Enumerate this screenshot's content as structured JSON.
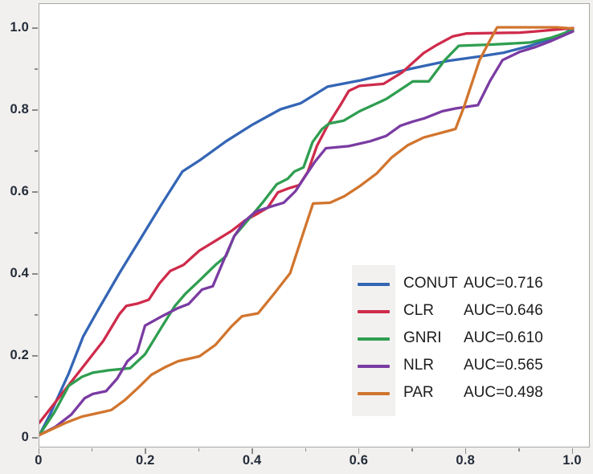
{
  "figure": {
    "background": "#f1f0ee",
    "plot_background": "#ffffff",
    "border_color": "#a8a8a8",
    "tick_color": "#8a8a8a",
    "tick_label_color": "#242c3a"
  },
  "chart_data": {
    "type": "line",
    "title": "",
    "xlabel": "",
    "ylabel": "",
    "xlim": [
      0,
      1
    ],
    "ylim": [
      0,
      1
    ],
    "grid": false,
    "legend_position": "lower right",
    "x_ticks": {
      "major": [
        0,
        0.2,
        0.4,
        0.6,
        0.8,
        1.0
      ],
      "labels": [
        "0",
        "0.2",
        "0.4",
        "0.6",
        "0.8",
        "1.0"
      ],
      "minor": [
        0.1,
        0.3,
        0.5,
        0.7,
        0.9
      ]
    },
    "y_ticks": {
      "major": [
        0,
        0.2,
        0.4,
        0.6,
        0.8,
        1.0
      ],
      "labels": [
        "0",
        "0.2",
        "0.4",
        "0.6",
        "0.8",
        "1.0"
      ],
      "minor": [
        0.1,
        0.3,
        0.5,
        0.7,
        0.9
      ]
    },
    "series": [
      {
        "name": "CONUT",
        "auc": 0.716,
        "auc_label": "AUC=0.716",
        "color": "#3465b5",
        "points": [
          [
            0,
            0.005
          ],
          [
            0.02,
            0.055
          ],
          [
            0.055,
            0.155
          ],
          [
            0.082,
            0.245
          ],
          [
            0.11,
            0.31
          ],
          [
            0.15,
            0.4
          ],
          [
            0.19,
            0.485
          ],
          [
            0.23,
            0.57
          ],
          [
            0.268,
            0.648
          ],
          [
            0.3,
            0.675
          ],
          [
            0.35,
            0.722
          ],
          [
            0.4,
            0.763
          ],
          [
            0.452,
            0.8
          ],
          [
            0.49,
            0.815
          ],
          [
            0.54,
            0.855
          ],
          [
            0.6,
            0.87
          ],
          [
            0.65,
            0.885
          ],
          [
            0.7,
            0.9
          ],
          [
            0.766,
            0.918
          ],
          [
            0.82,
            0.928
          ],
          [
            0.87,
            0.938
          ],
          [
            0.92,
            0.955
          ],
          [
            0.98,
            0.982
          ],
          [
            1,
            0.998
          ]
        ]
      },
      {
        "name": "CLR",
        "auc": 0.646,
        "auc_label": "AUC=0.646",
        "color": "#cf2b4b",
        "points": [
          [
            0,
            0.035
          ],
          [
            0.03,
            0.085
          ],
          [
            0.06,
            0.135
          ],
          [
            0.09,
            0.185
          ],
          [
            0.12,
            0.235
          ],
          [
            0.15,
            0.3
          ],
          [
            0.163,
            0.32
          ],
          [
            0.185,
            0.326
          ],
          [
            0.205,
            0.335
          ],
          [
            0.225,
            0.375
          ],
          [
            0.245,
            0.405
          ],
          [
            0.27,
            0.42
          ],
          [
            0.3,
            0.455
          ],
          [
            0.325,
            0.475
          ],
          [
            0.36,
            0.503
          ],
          [
            0.385,
            0.528
          ],
          [
            0.41,
            0.546
          ],
          [
            0.428,
            0.56
          ],
          [
            0.447,
            0.597
          ],
          [
            0.467,
            0.607
          ],
          [
            0.487,
            0.615
          ],
          [
            0.503,
            0.647
          ],
          [
            0.52,
            0.71
          ],
          [
            0.54,
            0.76
          ],
          [
            0.565,
            0.812
          ],
          [
            0.58,
            0.845
          ],
          [
            0.6,
            0.857
          ],
          [
            0.645,
            0.862
          ],
          [
            0.68,
            0.89
          ],
          [
            0.72,
            0.937
          ],
          [
            0.745,
            0.957
          ],
          [
            0.775,
            0.978
          ],
          [
            0.8,
            0.985
          ],
          [
            0.9,
            0.987
          ],
          [
            0.93,
            0.99
          ],
          [
            1,
            0.998
          ]
        ]
      },
      {
        "name": "GNRI",
        "auc": 0.61,
        "auc_label": "AUC=0.610",
        "color": "#2f9e50",
        "points": [
          [
            0,
            0.005
          ],
          [
            0.028,
            0.06
          ],
          [
            0.055,
            0.125
          ],
          [
            0.08,
            0.147
          ],
          [
            0.1,
            0.157
          ],
          [
            0.13,
            0.163
          ],
          [
            0.17,
            0.168
          ],
          [
            0.198,
            0.202
          ],
          [
            0.23,
            0.27
          ],
          [
            0.254,
            0.32
          ],
          [
            0.274,
            0.35
          ],
          [
            0.3,
            0.382
          ],
          [
            0.33,
            0.42
          ],
          [
            0.35,
            0.442
          ],
          [
            0.365,
            0.49
          ],
          [
            0.39,
            0.528
          ],
          [
            0.42,
            0.575
          ],
          [
            0.445,
            0.617
          ],
          [
            0.465,
            0.63
          ],
          [
            0.478,
            0.648
          ],
          [
            0.495,
            0.658
          ],
          [
            0.512,
            0.72
          ],
          [
            0.53,
            0.752
          ],
          [
            0.543,
            0.765
          ],
          [
            0.57,
            0.772
          ],
          [
            0.6,
            0.795
          ],
          [
            0.65,
            0.825
          ],
          [
            0.7,
            0.868
          ],
          [
            0.73,
            0.868
          ],
          [
            0.76,
            0.92
          ],
          [
            0.786,
            0.955
          ],
          [
            0.85,
            0.958
          ],
          [
            0.92,
            0.963
          ],
          [
            0.96,
            0.975
          ],
          [
            1,
            0.993
          ]
        ]
      },
      {
        "name": "NLR",
        "auc": 0.565,
        "auc_label": "AUC=0.565",
        "color": "#7a3ba2",
        "points": [
          [
            0,
            0.005
          ],
          [
            0.03,
            0.025
          ],
          [
            0.06,
            0.055
          ],
          [
            0.085,
            0.095
          ],
          [
            0.1,
            0.105
          ],
          [
            0.125,
            0.112
          ],
          [
            0.146,
            0.143
          ],
          [
            0.165,
            0.185
          ],
          [
            0.183,
            0.206
          ],
          [
            0.198,
            0.272
          ],
          [
            0.23,
            0.295
          ],
          [
            0.26,
            0.315
          ],
          [
            0.28,
            0.325
          ],
          [
            0.305,
            0.36
          ],
          [
            0.325,
            0.368
          ],
          [
            0.345,
            0.43
          ],
          [
            0.365,
            0.49
          ],
          [
            0.385,
            0.527
          ],
          [
            0.405,
            0.55
          ],
          [
            0.435,
            0.563
          ],
          [
            0.458,
            0.572
          ],
          [
            0.48,
            0.6
          ],
          [
            0.5,
            0.64
          ],
          [
            0.517,
            0.673
          ],
          [
            0.537,
            0.705
          ],
          [
            0.58,
            0.71
          ],
          [
            0.62,
            0.722
          ],
          [
            0.65,
            0.735
          ],
          [
            0.677,
            0.76
          ],
          [
            0.7,
            0.77
          ],
          [
            0.722,
            0.778
          ],
          [
            0.755,
            0.795
          ],
          [
            0.78,
            0.802
          ],
          [
            0.822,
            0.81
          ],
          [
            0.845,
            0.87
          ],
          [
            0.868,
            0.92
          ],
          [
            0.9,
            0.94
          ],
          [
            0.93,
            0.952
          ],
          [
            0.96,
            0.967
          ],
          [
            1,
            0.99
          ]
        ]
      },
      {
        "name": "PAR",
        "auc": 0.498,
        "auc_label": "AUC=0.498",
        "color": "#d1752e",
        "points": [
          [
            0,
            0.005
          ],
          [
            0.05,
            0.035
          ],
          [
            0.08,
            0.05
          ],
          [
            0.115,
            0.06
          ],
          [
            0.135,
            0.066
          ],
          [
            0.16,
            0.09
          ],
          [
            0.185,
            0.12
          ],
          [
            0.21,
            0.152
          ],
          [
            0.235,
            0.17
          ],
          [
            0.26,
            0.185
          ],
          [
            0.3,
            0.197
          ],
          [
            0.33,
            0.225
          ],
          [
            0.36,
            0.27
          ],
          [
            0.38,
            0.295
          ],
          [
            0.41,
            0.302
          ],
          [
            0.44,
            0.35
          ],
          [
            0.47,
            0.4
          ],
          [
            0.49,
            0.48
          ],
          [
            0.513,
            0.57
          ],
          [
            0.545,
            0.572
          ],
          [
            0.572,
            0.588
          ],
          [
            0.6,
            0.612
          ],
          [
            0.632,
            0.643
          ],
          [
            0.66,
            0.682
          ],
          [
            0.69,
            0.712
          ],
          [
            0.72,
            0.731
          ],
          [
            0.76,
            0.745
          ],
          [
            0.78,
            0.752
          ],
          [
            0.796,
            0.806
          ],
          [
            0.825,
            0.92
          ],
          [
            0.843,
            0.965
          ],
          [
            0.858,
            1.0
          ],
          [
            0.97,
            1.0
          ],
          [
            1,
            0.997
          ]
        ]
      }
    ]
  }
}
